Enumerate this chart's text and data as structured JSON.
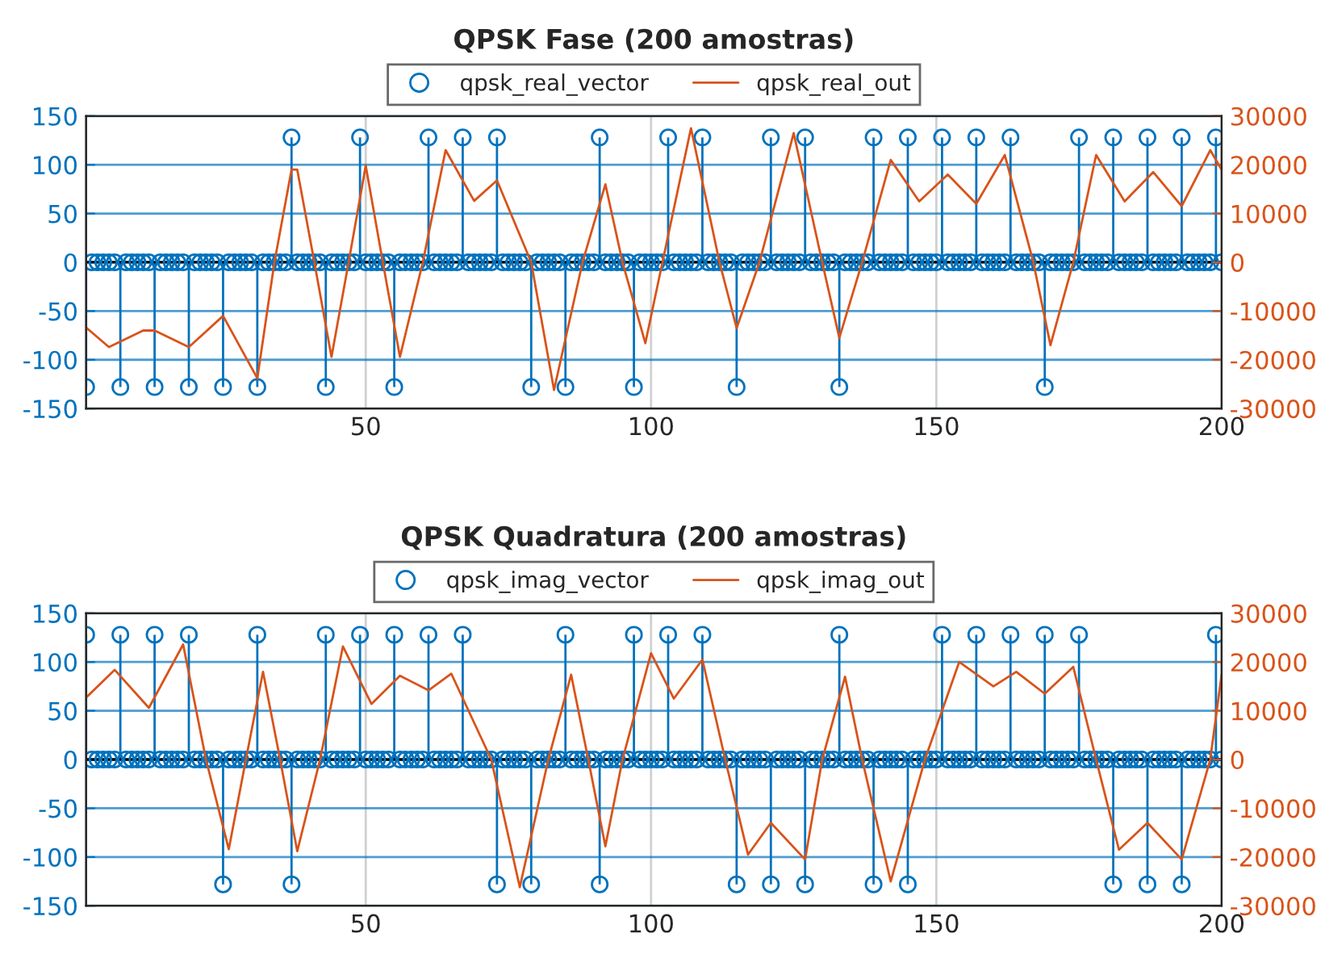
{
  "chart_data": [
    {
      "type": "lollipop",
      "title": "QPSK Fase (200 amostras)",
      "xlim": [
        1,
        200
      ],
      "xticks": [
        50,
        100,
        150,
        200
      ],
      "ylim": [
        -150,
        150
      ],
      "yticks": [
        -150,
        -100,
        -50,
        0,
        50,
        100,
        150
      ],
      "y2lim": [
        -30000,
        30000
      ],
      "y2ticks": [
        -30000,
        -20000,
        -10000,
        0,
        10000,
        20000,
        30000
      ],
      "grid": true,
      "legend": "top",
      "ref_lines": [
        {
          "axis": "y",
          "value": 0,
          "color": "#000000"
        }
      ],
      "x": [
        1,
        2,
        3,
        4,
        5,
        6,
        7,
        8,
        9,
        10,
        11,
        12,
        13,
        14,
        15,
        16,
        17,
        18,
        19,
        20,
        21,
        22,
        23,
        24,
        25,
        26,
        27,
        28,
        29,
        30,
        31,
        32,
        33,
        34,
        35,
        36,
        37,
        38,
        39,
        40,
        41,
        42,
        43,
        44,
        45,
        46,
        47,
        48,
        49,
        50,
        51,
        52,
        53,
        54,
        55,
        56,
        57,
        58,
        59,
        60,
        61,
        62,
        63,
        64,
        65,
        66,
        67,
        68,
        69,
        70,
        71,
        72,
        73,
        74,
        75,
        76,
        77,
        78,
        79,
        80,
        81,
        82,
        83,
        84,
        85,
        86,
        87,
        88,
        89,
        90,
        91,
        92,
        93,
        94,
        95,
        96,
        97,
        98,
        99,
        100,
        101,
        102,
        103,
        104,
        105,
        106,
        107,
        108,
        109,
        110,
        111,
        112,
        113,
        114,
        115,
        116,
        117,
        118,
        119,
        120,
        121,
        122,
        123,
        124,
        125,
        126,
        127,
        128,
        129,
        130,
        131,
        132,
        133,
        134,
        135,
        136,
        137,
        138,
        139,
        140,
        141,
        142,
        143,
        144,
        145,
        146,
        147,
        148,
        149,
        150,
        151,
        152,
        153,
        154,
        155,
        156,
        157,
        158,
        159,
        160,
        161,
        162,
        163,
        164,
        165,
        166,
        167,
        168,
        169,
        170,
        171,
        172,
        173,
        174,
        175,
        176,
        177,
        178,
        179,
        180,
        181,
        182,
        183,
        184,
        185,
        186,
        187,
        188,
        189,
        190,
        191,
        192,
        193,
        194,
        195,
        196,
        197,
        198,
        199,
        200
      ],
      "series": [
        {
          "name": "qpsk_real_vector",
          "marker": "circle",
          "color": "#0072bd",
          "values": [
            -128,
            0,
            0,
            0,
            0,
            0,
            -128,
            0,
            0,
            0,
            0,
            0,
            -128,
            0,
            0,
            0,
            0,
            0,
            -128,
            0,
            0,
            0,
            0,
            0,
            -128,
            0,
            0,
            0,
            0,
            0,
            -128,
            0,
            0,
            0,
            0,
            0,
            128,
            0,
            0,
            0,
            0,
            0,
            -128,
            0,
            0,
            0,
            0,
            0,
            128,
            0,
            0,
            0,
            0,
            0,
            -128,
            0,
            0,
            0,
            0,
            0,
            128,
            0,
            0,
            0,
            0,
            0,
            128,
            0,
            0,
            0,
            0,
            0,
            128,
            0,
            0,
            0,
            0,
            0,
            -128,
            0,
            0,
            0,
            0,
            0,
            -128,
            0,
            0,
            0,
            0,
            0,
            128,
            0,
            0,
            0,
            0,
            0,
            -128,
            0,
            0,
            0,
            0,
            0,
            128,
            0,
            0,
            0,
            0,
            0,
            128,
            0,
            0,
            0,
            0,
            0,
            -128,
            0,
            0,
            0,
            0,
            0,
            128,
            0,
            0,
            0,
            0,
            0,
            128,
            0,
            0,
            0,
            0,
            0,
            -128,
            0,
            0,
            0,
            0,
            0,
            128,
            0,
            0,
            0,
            0,
            0,
            128,
            0,
            0,
            0,
            0,
            0,
            128,
            0,
            0,
            0,
            0,
            0,
            128,
            0,
            0,
            0,
            0,
            0,
            128,
            0,
            0,
            0,
            0,
            0,
            -128,
            0,
            0,
            0,
            0,
            0,
            128,
            0,
            0,
            0,
            0,
            0,
            128,
            0,
            0,
            0,
            0,
            0,
            128,
            0,
            0,
            0,
            0,
            0,
            128,
            0,
            0,
            0,
            0,
            0,
            128,
            0
          ]
        },
        {
          "name": "qpsk_real_out",
          "type": "line",
          "axis": "y2",
          "color": "#d95319",
          "x": [
            1,
            5,
            11,
            13,
            19,
            25,
            31,
            34,
            37,
            38,
            41,
            44,
            47,
            50,
            53,
            56,
            60,
            64,
            69,
            73,
            79,
            83,
            88,
            92,
            95,
            99,
            102,
            107,
            112,
            115,
            119,
            125,
            130,
            133,
            137,
            142,
            147,
            152,
            157,
            162,
            167,
            170,
            174,
            178,
            183,
            188,
            193,
            198,
            200
          ],
          "values": [
            -13400,
            -17400,
            -14000,
            -14000,
            -17400,
            -11000,
            -23800,
            0,
            19000,
            19000,
            0,
            -19400,
            0,
            19800,
            0,
            -19400,
            0,
            23000,
            12600,
            16800,
            0,
            -26200,
            0,
            16000,
            0,
            -16600,
            0,
            27500,
            0,
            -13500,
            0,
            26500,
            0,
            -15500,
            0,
            21000,
            12500,
            18000,
            12000,
            22000,
            0,
            -17000,
            0,
            22000,
            12500,
            18500,
            11500,
            23000,
            19000
          ]
        }
      ]
    },
    {
      "type": "lollipop",
      "title": "QPSK Quadratura (200 amostras)",
      "xlim": [
        1,
        200
      ],
      "xticks": [
        50,
        100,
        150,
        200
      ],
      "ylim": [
        -150,
        150
      ],
      "yticks": [
        -150,
        -100,
        -50,
        0,
        50,
        100,
        150
      ],
      "y2lim": [
        -30000,
        30000
      ],
      "y2ticks": [
        -30000,
        -20000,
        -10000,
        0,
        10000,
        20000,
        30000
      ],
      "grid": true,
      "legend": "top",
      "ref_lines": [
        {
          "axis": "y",
          "value": 0,
          "color": "#000000"
        }
      ],
      "x": [
        1,
        2,
        3,
        4,
        5,
        6,
        7,
        8,
        9,
        10,
        11,
        12,
        13,
        14,
        15,
        16,
        17,
        18,
        19,
        20,
        21,
        22,
        23,
        24,
        25,
        26,
        27,
        28,
        29,
        30,
        31,
        32,
        33,
        34,
        35,
        36,
        37,
        38,
        39,
        40,
        41,
        42,
        43,
        44,
        45,
        46,
        47,
        48,
        49,
        50,
        51,
        52,
        53,
        54,
        55,
        56,
        57,
        58,
        59,
        60,
        61,
        62,
        63,
        64,
        65,
        66,
        67,
        68,
        69,
        70,
        71,
        72,
        73,
        74,
        75,
        76,
        77,
        78,
        79,
        80,
        81,
        82,
        83,
        84,
        85,
        86,
        87,
        88,
        89,
        90,
        91,
        92,
        93,
        94,
        95,
        96,
        97,
        98,
        99,
        100,
        101,
        102,
        103,
        104,
        105,
        106,
        107,
        108,
        109,
        110,
        111,
        112,
        113,
        114,
        115,
        116,
        117,
        118,
        119,
        120,
        121,
        122,
        123,
        124,
        125,
        126,
        127,
        128,
        129,
        130,
        131,
        132,
        133,
        134,
        135,
        136,
        137,
        138,
        139,
        140,
        141,
        142,
        143,
        144,
        145,
        146,
        147,
        148,
        149,
        150,
        151,
        152,
        153,
        154,
        155,
        156,
        157,
        158,
        159,
        160,
        161,
        162,
        163,
        164,
        165,
        166,
        167,
        168,
        169,
        170,
        171,
        172,
        173,
        174,
        175,
        176,
        177,
        178,
        179,
        180,
        181,
        182,
        183,
        184,
        185,
        186,
        187,
        188,
        189,
        190,
        191,
        192,
        193,
        194,
        195,
        196,
        197,
        198,
        199,
        200
      ],
      "series": [
        {
          "name": "qpsk_imag_vector",
          "marker": "circle",
          "color": "#0072bd",
          "values": [
            128,
            0,
            0,
            0,
            0,
            0,
            128,
            0,
            0,
            0,
            0,
            0,
            128,
            0,
            0,
            0,
            0,
            0,
            128,
            0,
            0,
            0,
            0,
            0,
            -128,
            0,
            0,
            0,
            0,
            0,
            128,
            0,
            0,
            0,
            0,
            0,
            -128,
            0,
            0,
            0,
            0,
            0,
            128,
            0,
            0,
            0,
            0,
            0,
            128,
            0,
            0,
            0,
            0,
            0,
            128,
            0,
            0,
            0,
            0,
            0,
            128,
            0,
            0,
            0,
            0,
            0,
            128,
            0,
            0,
            0,
            0,
            0,
            -128,
            0,
            0,
            0,
            0,
            0,
            -128,
            0,
            0,
            0,
            0,
            0,
            128,
            0,
            0,
            0,
            0,
            0,
            -128,
            0,
            0,
            0,
            0,
            0,
            128,
            0,
            0,
            0,
            0,
            0,
            128,
            0,
            0,
            0,
            0,
            0,
            128,
            0,
            0,
            0,
            0,
            0,
            -128,
            0,
            0,
            0,
            0,
            0,
            -128,
            0,
            0,
            0,
            0,
            0,
            -128,
            0,
            0,
            0,
            0,
            0,
            128,
            0,
            0,
            0,
            0,
            0,
            -128,
            0,
            0,
            0,
            0,
            0,
            -128,
            0,
            0,
            0,
            0,
            0,
            128,
            0,
            0,
            0,
            0,
            0,
            128,
            0,
            0,
            0,
            0,
            0,
            128,
            0,
            0,
            0,
            0,
            0,
            128,
            0,
            0,
            0,
            0,
            0,
            128,
            0,
            0,
            0,
            0,
            0,
            -128,
            0,
            0,
            0,
            0,
            0,
            -128,
            0,
            0,
            0,
            0,
            0,
            -128,
            0,
            0,
            0,
            0,
            0,
            128,
            0
          ]
        },
        {
          "name": "qpsk_imag_out",
          "type": "line",
          "axis": "y2",
          "color": "#d95319",
          "x": [
            1,
            6,
            12,
            18,
            22,
            26,
            29,
            32,
            35,
            38,
            42,
            46,
            51,
            56,
            61,
            65,
            72,
            77,
            82,
            86,
            89,
            92,
            95,
            100,
            104,
            109,
            113,
            117,
            121,
            127,
            130,
            134,
            137,
            142,
            148,
            154,
            160,
            164,
            169,
            174,
            178,
            182,
            187,
            193,
            198,
            200
          ],
          "values": [
            12700,
            18400,
            10600,
            23600,
            0,
            -18400,
            0,
            18000,
            0,
            -18800,
            0,
            23200,
            11400,
            17200,
            14200,
            17600,
            0,
            -26200,
            0,
            17400,
            0,
            -17800,
            0,
            21800,
            12500,
            20500,
            0,
            -19500,
            -13000,
            -20500,
            0,
            17000,
            0,
            -25000,
            0,
            20000,
            15000,
            18000,
            13500,
            19000,
            0,
            -18500,
            -13000,
            -20500,
            0,
            17500
          ]
        }
      ]
    }
  ]
}
